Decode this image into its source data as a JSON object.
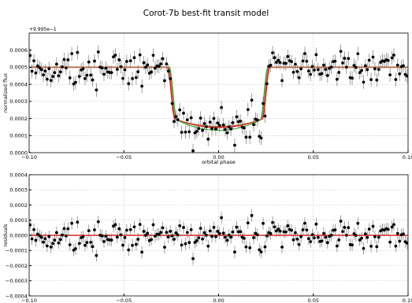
{
  "figure": {
    "title": "Corot-7b best-fit transit model"
  },
  "chart_data": [
    {
      "type": "scatter",
      "id": "top",
      "title": "Corot-7b best-fit transit model",
      "xlabel": "orbital phase",
      "ylabel": "normalized flux",
      "offset_label": "+9.995e−1",
      "xlim": [
        -0.1,
        0.1
      ],
      "ylim": [
        0.0,
        0.0007
      ],
      "grid": true,
      "xticks": [
        -0.1,
        -0.05,
        0.0,
        0.05,
        0.1
      ],
      "xtick_labels": [
        "−0.10",
        "−0.05",
        "0.00",
        "0.05",
        "0.10"
      ],
      "yticks": [
        0.0,
        0.0001,
        0.0002,
        0.0003,
        0.0004,
        0.0005,
        0.0006
      ],
      "ytick_labels": [
        "0.0000",
        "0.0001",
        "0.0002",
        "0.0003",
        "0.0004",
        "0.0005",
        "0.0006"
      ],
      "series": [
        {
          "kind": "points_with_errorbars",
          "color": "#000000",
          "errorbar_color": "#888888",
          "n_points": 200,
          "x_range": [
            -0.1,
            0.1
          ],
          "y_error": 4e-05
        },
        {
          "kind": "model_line",
          "color": "#d62728",
          "baseline": 0.0005,
          "depth": 0.00032,
          "ingress": [
            -0.027,
            -0.023
          ],
          "egress": [
            0.023,
            0.027
          ],
          "limb_darkening": 5e-05
        },
        {
          "kind": "model_line",
          "color": "#2ca02c",
          "baseline": 0.0005,
          "depth": 0.00033,
          "ingress": [
            -0.026,
            -0.022
          ],
          "egress": [
            0.022,
            0.026
          ],
          "limb_darkening": 6e-05
        },
        {
          "kind": "model_line",
          "color": "#b07040",
          "baseline": 0.0005,
          "depth": 0.00032,
          "ingress": [
            -0.0265,
            -0.0225
          ],
          "egress": [
            0.0225,
            0.0265
          ],
          "limb_darkening": 4e-05
        }
      ]
    },
    {
      "type": "scatter",
      "id": "bottom",
      "xlabel": "orbital phase",
      "ylabel": "residuals",
      "xlim": [
        -0.1,
        0.1
      ],
      "ylim": [
        -0.0004,
        0.0004
      ],
      "grid": true,
      "xticks": [
        -0.1,
        -0.05,
        0.0,
        0.05,
        0.1
      ],
      "xtick_labels": [
        "−0.10",
        "−0.05",
        "0.00",
        "0.05",
        "0.10"
      ],
      "yticks": [
        -0.0004,
        -0.0003,
        -0.0002,
        -0.0001,
        0.0,
        0.0001,
        0.0002,
        0.0003,
        0.0004
      ],
      "ytick_labels": [
        "−0.0004",
        "−0.0003",
        "−0.0002",
        "−0.0001",
        "0.0000",
        "0.0001",
        "0.0002",
        "0.0003",
        "0.0004"
      ],
      "series": [
        {
          "kind": "points_with_errorbars",
          "color": "#000000",
          "errorbar_color": "#888888",
          "n_points": 200,
          "x_range": [
            -0.1,
            0.1
          ],
          "y_error": 4e-05
        },
        {
          "kind": "zero_line",
          "color": "#d62728",
          "value": 0.0
        }
      ]
    }
  ]
}
